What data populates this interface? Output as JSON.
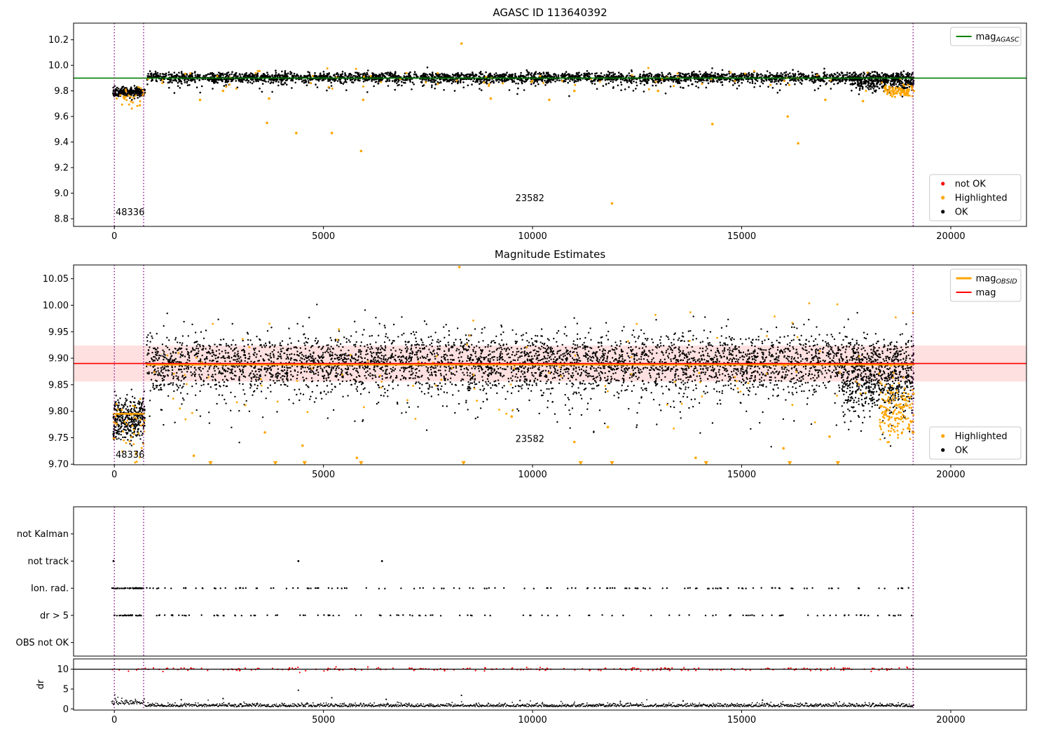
{
  "figure": {
    "background": "#ffffff",
    "obsid_labels": [
      "48336",
      "23582"
    ]
  },
  "colors": {
    "ok": "#000000",
    "highlighted": "#ffa500",
    "not_ok": "#ff0000",
    "mag_agasc_line": "#008000",
    "mag_line": "#ff0000",
    "mag_band": "rgba(255,0,0,0.12)",
    "obsid_line": "#ffa500",
    "vline": "#800080"
  },
  "chart_data": [
    {
      "id": "agasc-mag",
      "type": "scatter",
      "title": "AGASC ID 113640392",
      "xlim": [
        -975,
        21810
      ],
      "ylim": [
        8.74,
        10.33
      ],
      "xticks": [
        0,
        5000,
        10000,
        15000,
        20000
      ],
      "yticks": [
        8.8,
        9.0,
        9.2,
        9.4,
        9.6,
        9.8,
        10.0,
        10.2
      ],
      "ytick_decimals": 1,
      "hlines": [
        {
          "y": 9.9,
          "color": "#008000",
          "width": 1.6,
          "name": "mag-agasc-line"
        }
      ],
      "vlines": [
        {
          "x": 0
        },
        {
          "x": 700
        },
        {
          "x": 19100
        }
      ],
      "clusters": [
        {
          "name": "ok-main",
          "color": "#000000",
          "n": 3000,
          "x0": 760,
          "x1": 19120,
          "y_mean": 9.905,
          "y_sd": 0.02,
          "size": 1.3,
          "seed": 11
        },
        {
          "name": "ok-low-tail",
          "color": "#000000",
          "n": 220,
          "x0": 760,
          "x1": 19120,
          "y_mean": 9.86,
          "y_sd": 0.035,
          "size": 1.3,
          "seed": 12
        },
        {
          "name": "ok-end-droop",
          "color": "#000000",
          "n": 260,
          "x0": 17600,
          "x1": 19120,
          "y_mean": 9.865,
          "y_sd": 0.03,
          "size": 1.3,
          "seed": 13
        },
        {
          "name": "ok-early",
          "color": "#000000",
          "n": 230,
          "x0": -30,
          "x1": 730,
          "y_mean": 9.79,
          "y_sd": 0.018,
          "size": 1.3,
          "seed": 14
        },
        {
          "name": "highlighted-inband",
          "color": "#ffa500",
          "n": 70,
          "x0": 760,
          "x1": 19120,
          "y_mean": 9.88,
          "y_sd": 0.045,
          "size": 1.5,
          "seed": 15
        },
        {
          "name": "highlighted-early",
          "color": "#ffa500",
          "n": 28,
          "x0": -20,
          "x1": 730,
          "y_mean": 9.745,
          "y_sd": 0.045,
          "size": 1.5,
          "seed": 16
        },
        {
          "name": "highlighted-end",
          "color": "#ffa500",
          "n": 90,
          "x0": 18400,
          "x1": 19120,
          "y_mean": 9.805,
          "y_sd": 0.02,
          "size": 1.5,
          "seed": 17
        }
      ],
      "points": [
        {
          "x": 2050,
          "y": 9.73,
          "color": "#ffa500"
        },
        {
          "x": 2600,
          "y": 9.8,
          "color": "#ffa500"
        },
        {
          "x": 3650,
          "y": 9.55,
          "color": "#ffa500"
        },
        {
          "x": 3700,
          "y": 9.74,
          "color": "#ffa500"
        },
        {
          "x": 4350,
          "y": 9.47,
          "color": "#ffa500"
        },
        {
          "x": 5200,
          "y": 9.47,
          "color": "#ffa500"
        },
        {
          "x": 5900,
          "y": 9.33,
          "color": "#ffa500"
        },
        {
          "x": 5950,
          "y": 9.73,
          "color": "#ffa500"
        },
        {
          "x": 8300,
          "y": 10.17,
          "color": "#ffa500"
        },
        {
          "x": 9000,
          "y": 9.74,
          "color": "#ffa500"
        },
        {
          "x": 10400,
          "y": 9.73,
          "color": "#ffa500"
        },
        {
          "x": 11000,
          "y": 9.8,
          "color": "#ffa500"
        },
        {
          "x": 11900,
          "y": 8.92,
          "color": "#ffa500"
        },
        {
          "x": 13000,
          "y": 9.8,
          "color": "#ffa500"
        },
        {
          "x": 14300,
          "y": 9.54,
          "color": "#ffa500"
        },
        {
          "x": 16100,
          "y": 9.6,
          "color": "#ffa500"
        },
        {
          "x": 16350,
          "y": 9.39,
          "color": "#ffa500"
        },
        {
          "x": 17000,
          "y": 9.73,
          "color": "#ffa500"
        },
        {
          "x": 17900,
          "y": 9.72,
          "color": "#ffa500"
        }
      ],
      "annotations": [
        {
          "text": "48336",
          "x": 30,
          "y": 8.827
        },
        {
          "text": "23582",
          "x": 9590,
          "y": 8.937
        }
      ],
      "legends": [
        {
          "corner": "top-right",
          "entries": [
            {
              "label": "mag",
              "sub": "AGASC",
              "marker": "line",
              "color": "#008000",
              "lw": 2
            }
          ]
        },
        {
          "corner": "bottom-right",
          "entries": [
            {
              "label": "not OK",
              "marker": "dot",
              "color": "#ff0000"
            },
            {
              "label": "Highlighted",
              "marker": "dot",
              "color": "#ffa500"
            },
            {
              "label": "OK",
              "marker": "dot",
              "color": "#000000"
            }
          ]
        }
      ]
    },
    {
      "id": "mag-estimates",
      "type": "scatter",
      "title": "Magnitude Estimates",
      "xlim": [
        -975,
        21810
      ],
      "ylim": [
        9.699,
        10.076
      ],
      "xticks": [
        0,
        5000,
        10000,
        15000,
        20000
      ],
      "yticks": [
        9.7,
        9.75,
        9.8,
        9.85,
        9.9,
        9.95,
        10.0,
        10.05
      ],
      "ytick_decimals": 2,
      "bands": [
        {
          "y0": 9.856,
          "y1": 9.924,
          "color": "rgba(255,0,0,0.12)",
          "name": "mag-uncertainty-band"
        }
      ],
      "hlines": [
        {
          "y": 9.888,
          "x0": 760,
          "x1": 19120,
          "color": "#ffa500",
          "width": 2.5,
          "name": "mag-obsid-line-main"
        },
        {
          "y": 9.795,
          "x0": -30,
          "x1": 730,
          "color": "#ffa500",
          "width": 2.5,
          "name": "mag-obsid-line-early"
        },
        {
          "y": 9.89,
          "color": "#ff0000",
          "width": 1.6,
          "name": "mag-line"
        }
      ],
      "vlines": [
        {
          "x": 0
        },
        {
          "x": 700
        },
        {
          "x": 19100
        }
      ],
      "clusters": [
        {
          "name": "ok-main",
          "color": "#000000",
          "n": 4200,
          "x0": 760,
          "x1": 19120,
          "y_mean": 9.893,
          "y_sd": 0.026,
          "size": 1.2,
          "seed": 21
        },
        {
          "name": "ok-low-tail",
          "color": "#000000",
          "n": 500,
          "x0": 760,
          "x1": 19120,
          "y_mean": 9.85,
          "y_sd": 0.035,
          "size": 1.2,
          "seed": 22
        },
        {
          "name": "ok-early",
          "color": "#000000",
          "n": 380,
          "x0": -30,
          "x1": 730,
          "y_mean": 9.783,
          "y_sd": 0.02,
          "size": 1.2,
          "seed": 23
        },
        {
          "name": "ok-end-droop",
          "color": "#000000",
          "n": 420,
          "x0": 17400,
          "x1": 19120,
          "y_mean": 9.845,
          "y_sd": 0.03,
          "size": 1.2,
          "seed": 24
        },
        {
          "name": "highlighted-scatter",
          "color": "#ffa500",
          "n": 110,
          "x0": 760,
          "x1": 19120,
          "y_mean": 9.875,
          "y_sd": 0.05,
          "size": 1.4,
          "seed": 25
        },
        {
          "name": "highlighted-early",
          "color": "#ffa500",
          "n": 45,
          "x0": -20,
          "x1": 730,
          "y_mean": 9.77,
          "y_sd": 0.035,
          "size": 1.4,
          "seed": 26
        },
        {
          "name": "highlighted-end",
          "color": "#ffa500",
          "n": 160,
          "x0": 18300,
          "x1": 19120,
          "y_mean": 9.8,
          "y_sd": 0.027,
          "size": 1.4,
          "seed": 27
        }
      ],
      "points": [
        {
          "x": 8250,
          "y": 10.072,
          "color": "#ffa500"
        },
        {
          "x": 1900,
          "y": 9.716,
          "color": "#ffa500"
        },
        {
          "x": 3600,
          "y": 9.76,
          "color": "#ffa500"
        },
        {
          "x": 4500,
          "y": 9.735,
          "color": "#ffa500"
        },
        {
          "x": 5800,
          "y": 9.712,
          "color": "#ffa500"
        },
        {
          "x": 9500,
          "y": 9.79,
          "color": "#ffa500"
        },
        {
          "x": 11000,
          "y": 9.742,
          "color": "#ffa500"
        },
        {
          "x": 11800,
          "y": 9.77,
          "color": "#ffa500"
        },
        {
          "x": 13900,
          "y": 9.712,
          "color": "#ffa500"
        },
        {
          "x": 16000,
          "y": 9.73,
          "color": "#ffa500"
        },
        {
          "x": 17100,
          "y": 9.752,
          "color": "#ffa500"
        },
        {
          "x": 2300,
          "y": 9.702,
          "color": "#ffa500",
          "marker": "tri-down"
        },
        {
          "x": 3850,
          "y": 9.702,
          "color": "#ffa500",
          "marker": "tri-down"
        },
        {
          "x": 4550,
          "y": 9.702,
          "color": "#ffa500",
          "marker": "tri-down"
        },
        {
          "x": 5900,
          "y": 9.702,
          "color": "#ffa500",
          "marker": "tri-down"
        },
        {
          "x": 8350,
          "y": 9.702,
          "color": "#ffa500",
          "marker": "tri-down"
        },
        {
          "x": 11150,
          "y": 9.702,
          "color": "#ffa500",
          "marker": "tri-down"
        },
        {
          "x": 11900,
          "y": 9.702,
          "color": "#ffa500",
          "marker": "tri-down"
        },
        {
          "x": 14150,
          "y": 9.702,
          "color": "#ffa500",
          "marker": "tri-down"
        },
        {
          "x": 16150,
          "y": 9.702,
          "color": "#ffa500",
          "marker": "tri-down"
        },
        {
          "x": 17300,
          "y": 9.702,
          "color": "#ffa500",
          "marker": "tri-down"
        }
      ],
      "annotations": [
        {
          "text": "48336",
          "x": 30,
          "y": 9.712
        },
        {
          "text": "23582",
          "x": 9590,
          "y": 9.742
        }
      ],
      "legends": [
        {
          "corner": "top-right",
          "entries": [
            {
              "label": "mag",
              "sub": "OBSID",
              "marker": "line",
              "color": "#ffa500",
              "lw": 3
            },
            {
              "label": "mag",
              "marker": "line",
              "color": "#ff0000",
              "lw": 2
            }
          ]
        },
        {
          "corner": "bottom-right",
          "entries": [
            {
              "label": "Highlighted",
              "marker": "dot",
              "color": "#ffa500"
            },
            {
              "label": "OK",
              "marker": "dot",
              "color": "#000000"
            }
          ]
        }
      ]
    },
    {
      "id": "flags",
      "type": "flags",
      "xlim": [
        -975,
        21810
      ],
      "rows": [
        "not Kalman",
        "not track",
        "Ion. rad.",
        "dr > 5",
        "OBS not OK"
      ],
      "vlines": [
        {
          "x": 0
        },
        {
          "x": 700
        },
        {
          "x": 19100
        }
      ],
      "row_points": {
        "not track": [
          -20,
          4400,
          6400
        ]
      },
      "row_clusters": [
        {
          "row": "Ion. rad.",
          "n": 40,
          "x0": -60,
          "x1": 730,
          "seed": 31
        },
        {
          "row": "Ion. rad.",
          "n": 130,
          "x0": 760,
          "x1": 19120,
          "seed": 32
        },
        {
          "row": "dr > 5",
          "n": 30,
          "x0": -60,
          "x1": 730,
          "seed": 33
        },
        {
          "row": "dr > 5",
          "n": 115,
          "x0": 760,
          "x1": 19120,
          "seed": 34
        }
      ]
    },
    {
      "id": "dr",
      "type": "line",
      "ylabel": "dr",
      "xlim": [
        -975,
        21810
      ],
      "ylim": [
        -0.3,
        12.6
      ],
      "xticks": [
        0,
        5000,
        10000,
        15000,
        20000
      ],
      "yticks": [
        0,
        5,
        10
      ],
      "ytick_decimals": 0,
      "hlines": [
        {
          "y": 10,
          "color": "#000000",
          "width": 1.2,
          "name": "dr-clip-line"
        }
      ],
      "vlines": [
        {
          "x": 0
        },
        {
          "x": 700
        },
        {
          "x": 19100
        }
      ],
      "clusters": [
        {
          "name": "dr-clipped-not-ok",
          "color": "#ff0000",
          "n": 240,
          "x0": -60,
          "x1": 19120,
          "y_mean": 10.0,
          "y_sd": 0.22,
          "size": 1.1,
          "seed": 41
        }
      ],
      "trace": {
        "name": "dr-trace",
        "color": "#000000",
        "x0": -60,
        "x1": 19120,
        "step": 12,
        "base": 0.55,
        "noise": 0.42,
        "early_x": 730,
        "early_base": 1.1,
        "early_noise": 0.75,
        "seed": 42
      },
      "points": [
        {
          "x": 1600,
          "y": 2.3,
          "color": "#000000",
          "size": 1.1
        },
        {
          "x": 2600,
          "y": 2.6,
          "color": "#000000",
          "size": 1.1
        },
        {
          "x": 4400,
          "y": 4.7,
          "color": "#000000",
          "size": 1.1
        },
        {
          "x": 5200,
          "y": 2.8,
          "color": "#000000",
          "size": 1.1
        },
        {
          "x": 6500,
          "y": 2.4,
          "color": "#000000",
          "size": 1.1
        },
        {
          "x": 8300,
          "y": 3.4,
          "color": "#000000",
          "size": 1.1
        },
        {
          "x": 9700,
          "y": 2.1,
          "color": "#000000",
          "size": 1.1
        },
        {
          "x": 12100,
          "y": 1.9,
          "color": "#000000",
          "size": 1.1
        },
        {
          "x": 13600,
          "y": 2.0,
          "color": "#000000",
          "size": 1.1
        },
        {
          "x": 15500,
          "y": 2.2,
          "color": "#000000",
          "size": 1.1
        }
      ]
    }
  ]
}
